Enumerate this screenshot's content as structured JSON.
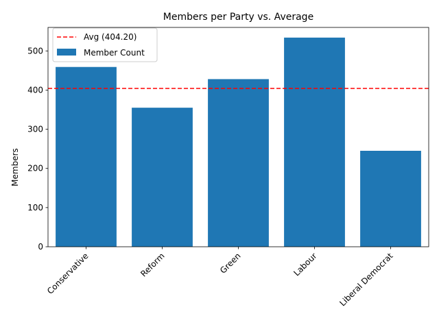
{
  "chart_data": {
    "type": "bar",
    "title": "Members per Party vs. Average",
    "xlabel": "",
    "ylabel": "Members",
    "categories": [
      "Conservative",
      "Reform",
      "Green",
      "Labour",
      "Liberal Democrat"
    ],
    "series": [
      {
        "name": "Member Count",
        "values": [
          459,
          355,
          428,
          534,
          245
        ],
        "color": "#1f77b4"
      }
    ],
    "reference_line": {
      "label": "Avg (404.20)",
      "value": 404.2,
      "color": "#ff0000",
      "style": "dashed"
    },
    "ylim": [
      0,
      560
    ],
    "yticks": [
      0,
      100,
      200,
      300,
      400,
      500
    ],
    "legend": "top-left",
    "grid": false
  }
}
